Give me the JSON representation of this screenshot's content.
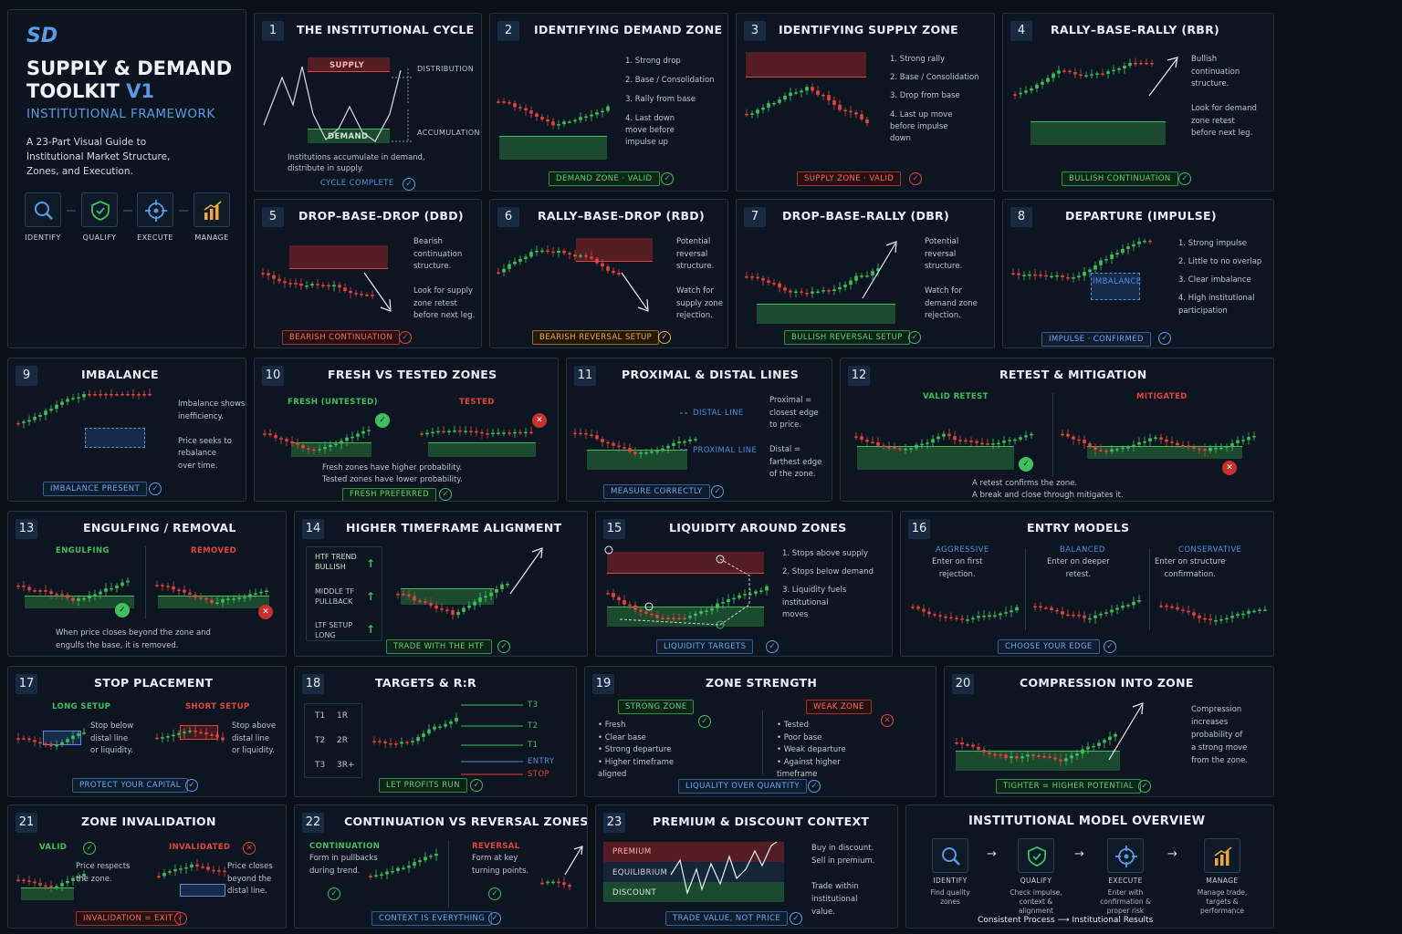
{
  "intro": {
    "logo": "SD",
    "title1": "SUPPLY & DEMAND",
    "title2": "TOOLKIT",
    "version": "V1",
    "subtitle": "INSTITUTIONAL FRAMEWORK",
    "desc": "A 23-Part Visual Guide to\nInstitutional Market Structure,\nZones, and Execution.",
    "icons": [
      "IDENTIFY",
      "QUALIFY",
      "EXECUTE",
      "MANAGE"
    ]
  },
  "p1": {
    "n": "1",
    "title": "THE INSTITUTIONAL CYCLE",
    "supply": "SUPPLY",
    "demand": "DEMAND",
    "dist": "DISTRIBUTION",
    "acc": "ACCUMULATION",
    "text": "Institutions accumulate in demand,\ndistribute in supply.",
    "badge": "CYCLE COMPLETE"
  },
  "p2": {
    "n": "2",
    "title": "IDENTIFYING DEMAND ZONE",
    "list": [
      "1.  Strong drop",
      "2.  Base / Consolidation",
      "3.  Rally from base",
      "4.  Last down\n     move before\n     impulse up"
    ],
    "badge": "DEMAND ZONE · VALID"
  },
  "p3": {
    "n": "3",
    "title": "IDENTIFYING SUPPLY ZONE",
    "list": [
      "1.  Strong rally",
      "2.  Base / Consolidation",
      "3.  Drop from base",
      "4.  Last up move\n     before impulse\n     down"
    ],
    "badge": "SUPPLY ZONE · VALID"
  },
  "p4": {
    "n": "4",
    "title": "RALLY–BASE–RALLY (RBR)",
    "text": "Bullish\ncontinuation\nstructure.\n\nLook for demand\nzone retest\nbefore next leg.",
    "badge": "BULLISH CONTINUATION"
  },
  "p5": {
    "n": "5",
    "title": "DROP–BASE–DROP (DBD)",
    "text": "Bearish\ncontinuation\nstructure.\n\nLook for supply\nzone retest\nbefore next leg.",
    "badge": "BEARISH CONTINUATION"
  },
  "p6": {
    "n": "6",
    "title": "RALLY–BASE–DROP (RBD)",
    "text": "Potential\nreversal\nstructure.\n\nWatch for\nsupply zone\nrejection.",
    "badge": "BEARISH REVERSAL SETUP"
  },
  "p7": {
    "n": "7",
    "title": "DROP–BASE–RALLY (DBR)",
    "text": "Potential\nreversal\nstructure.\n\nWatch for\ndemand zone\nrejection.",
    "badge": "BULLISH REVERSAL SETUP"
  },
  "p8": {
    "n": "8",
    "title": "DEPARTURE (IMPULSE)",
    "list": [
      "1.  Strong impulse",
      "2.  Little to no overlap",
      "3.  Clear imbalance",
      "4.  High institutional\n     participation"
    ],
    "imb": "IMBALANCE",
    "badge": "IMPULSE · CONFIRMED"
  },
  "p9": {
    "n": "9",
    "title": "IMBALANCE",
    "text": "Imbalance shows\ninefficiency.\n\nPrice seeks to\nrebalance\nover time.",
    "badge": "IMBALANCE PRESENT"
  },
  "p10": {
    "n": "10",
    "title": "FRESH VS TESTED ZONES",
    "fresh": "FRESH (UNTESTED)",
    "tested": "TESTED",
    "text": "Fresh zones have higher probability.\nTested zones have lower probability.",
    "badge": "FRESH PREFERRED"
  },
  "p11": {
    "n": "11",
    "title": "PROXIMAL & DISTAL LINES",
    "distal": "DISTAL LINE",
    "proximal": "PROXIMAL LINE",
    "text": "Proximal =\nclosest edge\nto price.\n\nDistal =\nfarthest edge\nof the zone.",
    "badge": "MEASURE CORRECTLY"
  },
  "p12": {
    "n": "12",
    "title": "RETEST & MITIGATION",
    "valid": "VALID RETEST",
    "mitigated": "MITIGATED",
    "text": "A retest confirms the zone.\nA break and close through mitigates it."
  },
  "p13": {
    "n": "13",
    "title": "ENGULFING / REMOVAL",
    "engulfing": "ENGULFING",
    "removed": "REMOVED",
    "text": "When price closes beyond the zone and\nengulfs the base, it is removed."
  },
  "p14": {
    "n": "14",
    "title": "HIGHER TIMEFRAME ALIGNMENT",
    "rows": [
      "HTF TREND\nBULLISH",
      "MIDDLE TF\nPULLBACK",
      "LTF SETUP\nLONG"
    ],
    "badge": "TRADE WITH THE HTF"
  },
  "p15": {
    "n": "15",
    "title": "LIQUIDITY AROUND ZONES",
    "list": [
      "1.  Stops above supply",
      "2.  Stops below demand",
      "3.  Liquidity fuels\n     institutional\n     moves"
    ],
    "badge": "LIQUIDITY TARGETS"
  },
  "p16": {
    "n": "16",
    "title": "ENTRY MODELS",
    "cols": [
      {
        "h": "AGGRESSIVE",
        "t": "Enter on first\nrejection."
      },
      {
        "h": "BALANCED",
        "t": "Enter on deeper\nretest."
      },
      {
        "h": "CONSERVATIVE",
        "t": "Enter on structure\nconfirmation."
      }
    ],
    "badge": "CHOOSE YOUR EDGE"
  },
  "p17": {
    "n": "17",
    "title": "STOP PLACEMENT",
    "long": "LONG SETUP",
    "short": "SHORT SETUP",
    "ltext": "Stop below\ndistal line\nor liquidity.",
    "stext": "Stop above\ndistal line\nor liquidity.",
    "badge": "PROTECT YOUR CAPITAL"
  },
  "p18": {
    "n": "18",
    "title": "TARGETS & R:R",
    "rows": [
      [
        "T1",
        "1R"
      ],
      [
        "T2",
        "2R"
      ],
      [
        "T3",
        "3R+"
      ]
    ],
    "lines": [
      "T3",
      "T2",
      "T1",
      "ENTRY",
      "STOP"
    ],
    "badge": "LET PROFITS RUN"
  },
  "p19": {
    "n": "19",
    "title": "ZONE STRENGTH",
    "strong": "STRONG ZONE",
    "weak": "WEAK ZONE",
    "slist": "•  Fresh\n•  Clear base\n•  Strong departure\n•  Higher timeframe\n    aligned",
    "wlist": "•  Tested\n•  Poor base\n•  Weak departure\n•  Against higher\n    timeframe",
    "badge": "LIQUALITY OVER QUANTITY"
  },
  "p20": {
    "n": "20",
    "title": "COMPRESSION INTO ZONE",
    "text": "Compression\nincreases\nprobability of\na strong move\nfrom the zone.",
    "badge": "TIGHTER = HIGHER POTENTIAL"
  },
  "p21": {
    "n": "21",
    "title": "ZONE INVALIDATION",
    "valid": "VALID",
    "invalidated": "INVALIDATED",
    "vtext": "Price respects\nthe zone.",
    "itext": "Price closes\nbeyond the\ndistal line.",
    "badge": "INVALIDATION = EXIT"
  },
  "p22": {
    "n": "22",
    "title": "CONTINUATION VS REVERSAL ZONES",
    "cont": "CONTINUATION",
    "ctext": "Form in pullbacks\nduring trend.",
    "rev": "REVERSAL",
    "rtext": "Form at key\nturning points.",
    "badge": "CONTEXT IS EVERYTHING"
  },
  "p23": {
    "n": "23",
    "title": "PREMIUM & DISCOUNT CONTEXT",
    "premium": "PREMIUM",
    "equilibrium": "EQUILIBRIUM",
    "discount": "DISCOUNT",
    "text": "Buy in discount.\nSell in premium.\n\nTrade within\ninstitutional\nvalue.",
    "badge": "TRADE VALUE, NOT PRICE"
  },
  "overview": {
    "title": "INSTITUTIONAL MODEL OVERVIEW",
    "steps": [
      {
        "h": "IDENTIFY",
        "t": "Find quality\nzones"
      },
      {
        "h": "QUALIFY",
        "t": "Check impulse,\ncontext &\nalignment"
      },
      {
        "h": "EXECUTE",
        "t": "Enter with\nconfirmation &\nproper risk"
      },
      {
        "h": "MANAGE",
        "t": "Manage trade,\ntargets &\nperformance"
      }
    ],
    "footer1": "Consistent Process",
    "footer2": "Institutional Results"
  },
  "colors": {
    "green": "#3fbf5e",
    "red": "#e2433f",
    "blue": "#4a8fe0",
    "gold": "#f0a83c"
  }
}
